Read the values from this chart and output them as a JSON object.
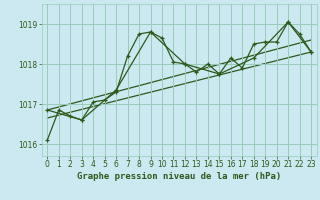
{
  "title": "Graphe pression niveau de la mer (hPa)",
  "bg_color": "#cce8f0",
  "grid_color": "#99ccbb",
  "line_color": "#2d5a1b",
  "xlim": [
    -0.5,
    23.5
  ],
  "ylim": [
    1015.7,
    1019.5
  ],
  "yticks": [
    1016,
    1017,
    1018,
    1019
  ],
  "xticks": [
    0,
    1,
    2,
    3,
    4,
    5,
    6,
    7,
    8,
    9,
    10,
    11,
    12,
    13,
    14,
    15,
    16,
    17,
    18,
    19,
    20,
    21,
    22,
    23
  ],
  "series1_x": [
    0,
    1,
    2,
    3,
    4,
    5,
    6,
    7,
    8,
    9,
    10,
    11,
    12,
    13,
    14,
    15,
    16,
    17,
    18,
    19,
    20,
    21,
    22,
    23
  ],
  "series1_y": [
    1016.1,
    1016.85,
    1016.7,
    1016.6,
    1017.05,
    1017.1,
    1017.3,
    1018.2,
    1018.75,
    1018.8,
    1018.65,
    1018.05,
    1018.0,
    1017.8,
    1018.0,
    1017.75,
    1018.15,
    1017.9,
    1018.5,
    1018.55,
    1018.55,
    1019.05,
    1018.75,
    1018.3
  ],
  "series2_x": [
    0,
    3,
    6,
    9,
    12,
    15,
    18,
    21,
    23
  ],
  "series2_y": [
    1016.85,
    1016.6,
    1017.35,
    1018.8,
    1018.0,
    1017.75,
    1018.15,
    1019.05,
    1018.3
  ],
  "series3_x": [
    0,
    23
  ],
  "series3_y": [
    1016.65,
    1018.3
  ],
  "series4_x": [
    0,
    23
  ],
  "series4_y": [
    1016.85,
    1018.6
  ],
  "title_fontsize": 6.5,
  "tick_fontsize": 5.5
}
